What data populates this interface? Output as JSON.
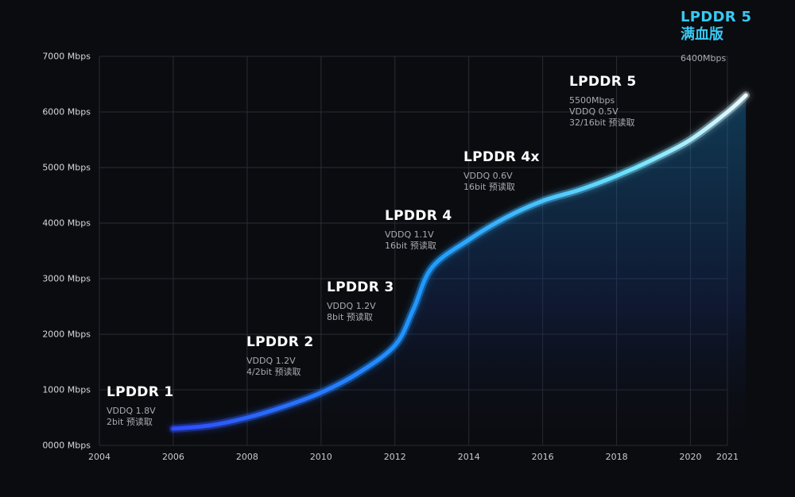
{
  "chart_data": {
    "type": "area",
    "xlim": [
      2004,
      2021
    ],
    "ylim": [
      0,
      7000
    ],
    "x_ticks": [
      2004,
      2006,
      2008,
      2010,
      2012,
      2014,
      2016,
      2018,
      2020,
      2021
    ],
    "x_tick_labels": [
      "2004",
      "2006",
      "2008",
      "2010",
      "2012",
      "2014",
      "2016",
      "2018",
      "2020",
      "2021"
    ],
    "y_ticks": [
      0,
      1000,
      2000,
      3000,
      4000,
      5000,
      6000,
      7000
    ],
    "y_tick_labels": [
      "0000 Mbps",
      "1000 Mbps",
      "2000 Mbps",
      "3000 Mbps",
      "4000 Mbps",
      "5000 Mbps",
      "6000 Mbps",
      "7000 Mbps"
    ],
    "grid": true,
    "series": [
      {
        "x": [
          2006,
          2007,
          2008,
          2009,
          2010,
          2011,
          2012,
          2012.5,
          2013,
          2014,
          2015,
          2016,
          2017,
          2018,
          2019,
          2020,
          2021,
          2021.5
        ],
        "values": [
          300,
          360,
          500,
          700,
          950,
          1300,
          1800,
          2450,
          3200,
          3700,
          4100,
          4400,
          4600,
          4850,
          5150,
          5500,
          6000,
          6300
        ]
      }
    ],
    "annotations": [
      {
        "id": "lpddr1",
        "title": "LPDDR 1",
        "lines": [
          "VDDQ 1.8V",
          "2bit 预读取"
        ]
      },
      {
        "id": "lpddr2",
        "title": "LPDDR 2",
        "lines": [
          "VDDQ 1.2V",
          "4/2bit 预读取"
        ]
      },
      {
        "id": "lpddr3",
        "title": "LPDDR 3",
        "lines": [
          "VDDQ 1.2V",
          "8bit 预读取"
        ]
      },
      {
        "id": "lpddr4",
        "title": "LPDDR 4",
        "lines": [
          "VDDQ 1.1V",
          "16bit 预读取"
        ]
      },
      {
        "id": "lpddr4x",
        "title": "LPDDR 4x",
        "lines": [
          "VDDQ 0.6V",
          "16bit 预读取"
        ]
      },
      {
        "id": "lpddr5",
        "title": "LPDDR 5",
        "lines": [
          "5500Mbps",
          "VDDQ 0.5V",
          "32/16bit 预读取"
        ]
      },
      {
        "id": "lpddr5plus",
        "title": "LPDDR 5",
        "subtitle": "满血版",
        "lines": [
          "6400Mbps"
        ]
      }
    ],
    "colors": {
      "background": "#0b0c10",
      "grid": "#2b2d33",
      "line_start": "#2f4dff",
      "line_mid": "#1e9cff",
      "line_end": "#e9fbff",
      "highlight_text": "#38c9f2"
    }
  }
}
